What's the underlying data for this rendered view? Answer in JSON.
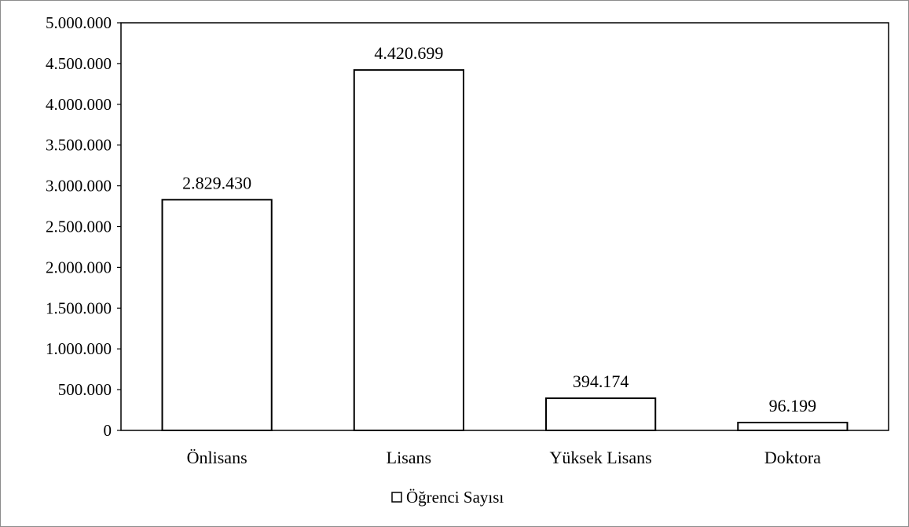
{
  "chart_data": {
    "type": "bar",
    "categories": [
      "Önlisans",
      "Lisans",
      "Yüksek Lisans",
      "Doktora"
    ],
    "series": [
      {
        "name": "Öğrenci Sayısı",
        "values": [
          2829430,
          4420699,
          394174,
          96199
        ]
      }
    ],
    "data_labels": [
      "2.829.430",
      "4.420.699",
      "394.174",
      "96.199"
    ],
    "ylim": [
      0,
      5000000
    ],
    "yticks": [
      0,
      500000,
      1000000,
      1500000,
      2000000,
      2500000,
      3000000,
      3500000,
      4000000,
      4500000,
      5000000
    ],
    "ytick_labels": [
      "0",
      "500.000",
      "1.000.000",
      "1.500.000",
      "2.000.000",
      "2.500.000",
      "3.000.000",
      "3.500.000",
      "4.000.000",
      "4.500.000",
      "5.000.000"
    ],
    "grid": false,
    "legend_position": "bottom-center",
    "bar_fill": "#ffffff",
    "bar_stroke": "#000000"
  }
}
